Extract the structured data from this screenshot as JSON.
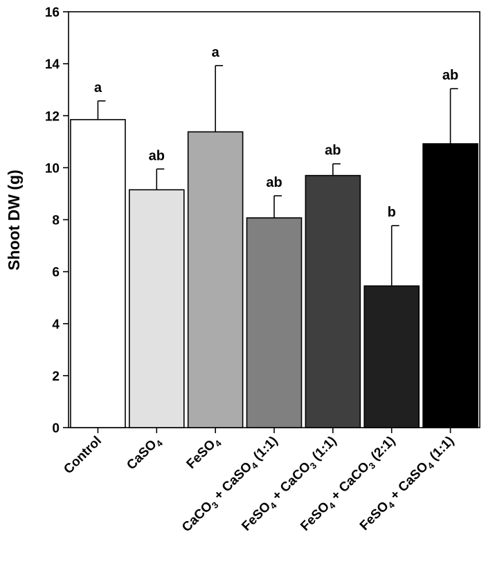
{
  "chart_data": {
    "type": "bar",
    "ylabel": "Shoot DW (g)",
    "ylim": [
      0,
      16
    ],
    "yticks": [
      0,
      2,
      4,
      6,
      8,
      10,
      12,
      14,
      16
    ],
    "categories": [
      {
        "base": "Control",
        "parts": [
          {
            "t": "Control"
          }
        ]
      },
      {
        "base": "CaSO4",
        "parts": [
          {
            "t": "CaSO"
          },
          {
            "t": "4",
            "sub": true
          }
        ]
      },
      {
        "base": "FeSO4",
        "parts": [
          {
            "t": "FeSO"
          },
          {
            "t": "4",
            "sub": true
          }
        ]
      },
      {
        "base": "CaCO3 + CaSO4 (1:1)",
        "parts": [
          {
            "t": "CaCO"
          },
          {
            "t": "3",
            "sub": true
          },
          {
            "t": " + CaSO"
          },
          {
            "t": "4",
            "sub": true
          },
          {
            "t": " (1:1)"
          }
        ]
      },
      {
        "base": "FeSO4 + CaCO3 (1:1)",
        "parts": [
          {
            "t": "FeSO"
          },
          {
            "t": "4",
            "sub": true
          },
          {
            "t": " + CaCO"
          },
          {
            "t": "3",
            "sub": true
          },
          {
            "t": " (1:1)"
          }
        ]
      },
      {
        "base": "FeSO4 + CaCO3 (2:1)",
        "parts": [
          {
            "t": "FeSO"
          },
          {
            "t": "4",
            "sub": true
          },
          {
            "t": " + CaCO"
          },
          {
            "t": "3",
            "sub": true
          },
          {
            "t": " (2:1)"
          }
        ]
      },
      {
        "base": "FeSO4 + CaSO4 (1:1)",
        "parts": [
          {
            "t": "FeSO"
          },
          {
            "t": "4",
            "sub": true
          },
          {
            "t": " + CaSO"
          },
          {
            "t": "4",
            "sub": true
          },
          {
            "t": " (1:1)"
          }
        ]
      }
    ],
    "values": [
      11.85,
      9.15,
      11.38,
      8.07,
      9.7,
      5.45,
      10.92
    ],
    "errors": [
      0.72,
      0.8,
      2.55,
      0.85,
      0.45,
      2.32,
      2.12
    ],
    "significance": [
      "a",
      "ab",
      "a",
      "ab",
      "ab",
      "b",
      "ab"
    ],
    "colors": [
      "#ffffff",
      "#e1e1e1",
      "#ababab",
      "#808080",
      "#3f3f3f",
      "#202020",
      "#000000"
    ]
  }
}
